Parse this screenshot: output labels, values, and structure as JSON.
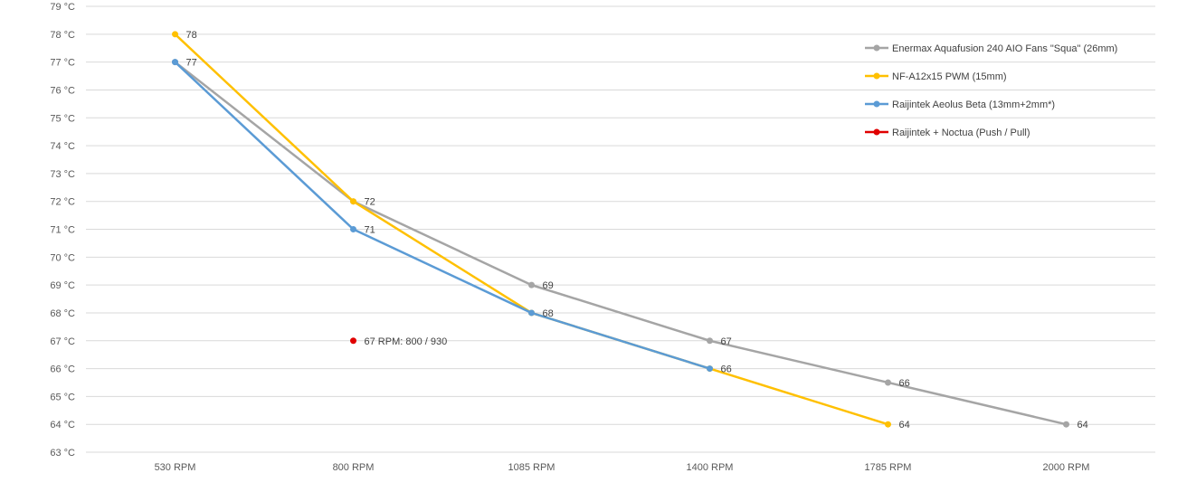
{
  "chart_data": {
    "type": "line",
    "title": "",
    "xlabel": "",
    "ylabel": "",
    "categories": [
      "530 RPM",
      "800 RPM",
      "1085 RPM",
      "1400 RPM",
      "1785 RPM",
      "2000 RPM"
    ],
    "y_ticks": [
      "63 °C",
      "64 °C",
      "65 °C",
      "66 °C",
      "67 °C",
      "68 °C",
      "69 °C",
      "70 °C",
      "71 °C",
      "72 °C",
      "73 °C",
      "74 °C",
      "75 °C",
      "76 °C",
      "77 °C",
      "78 °C",
      "79 °C"
    ],
    "ylim": [
      63,
      79
    ],
    "grid": true,
    "legend_position": "top-right",
    "series": [
      {
        "name": "Enermax Aquafusion 240 AIO Fans \"Squa\" (26mm)",
        "color": "#a5a5a5",
        "values": [
          77,
          72,
          69,
          67,
          65.5,
          64
        ],
        "labels": [
          "",
          "",
          "69",
          "67",
          "66",
          "64"
        ]
      },
      {
        "name": "NF-A12x15 PWM (15mm)",
        "color": "#ffc000",
        "values": [
          78,
          72,
          68,
          66,
          64,
          null
        ],
        "labels": [
          "78",
          "72",
          "",
          "",
          "64",
          ""
        ]
      },
      {
        "name": "Raijintek Aeolus Beta (13mm+2mm*)",
        "color": "#5b9bd5",
        "values": [
          77,
          71,
          68,
          66,
          null,
          null
        ],
        "labels": [
          "77",
          "71",
          "68",
          "66",
          "",
          ""
        ]
      },
      {
        "name": "Raijintek + Noctua (Push / Pull)",
        "color": "#e00000",
        "values": [
          null,
          67,
          null,
          null,
          null,
          null
        ],
        "labels": [
          "",
          "67 RPM: 800 / 930",
          "",
          "",
          "",
          ""
        ]
      }
    ]
  }
}
